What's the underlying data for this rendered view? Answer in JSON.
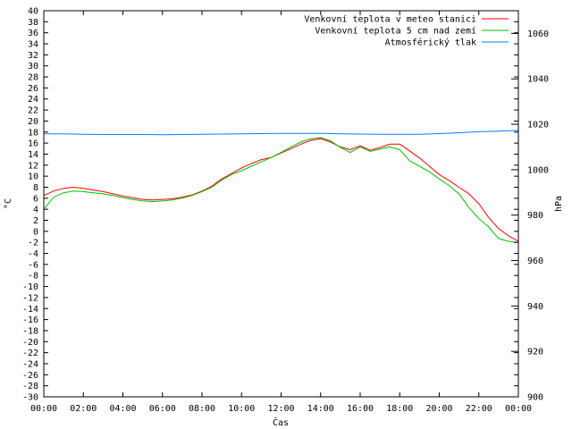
{
  "chart_data": {
    "type": "line",
    "x_label": "Čas",
    "y_left_label": "°C",
    "y_right_label": "hPa",
    "y_left_range": [
      -30,
      40
    ],
    "y_left_tick_step": 2,
    "y_right_range": [
      900,
      1070
    ],
    "y_right_ticks": [
      900,
      920,
      940,
      960,
      980,
      1000,
      1020,
      1040,
      1060
    ],
    "x_range_hours": [
      0,
      24
    ],
    "x_ticks": [
      "00:00",
      "02:00",
      "04:00",
      "06:00",
      "08:00",
      "10:00",
      "12:00",
      "14:00",
      "16:00",
      "18:00",
      "20:00",
      "22:00",
      "00:00"
    ],
    "legend_position": "top-right",
    "grid": false,
    "series": [
      {
        "name": "Venkovní teplota v meteo stanici",
        "color": "#ff0000",
        "axis": "left",
        "x": [
          0,
          0.5,
          1,
          1.5,
          2,
          2.5,
          3,
          3.5,
          4,
          4.5,
          5,
          5.5,
          6,
          6.5,
          7,
          7.5,
          8,
          8.5,
          9,
          9.5,
          10,
          10.5,
          11,
          11.5,
          12,
          12.5,
          13,
          13.5,
          14,
          14.5,
          15,
          15.5,
          16,
          16.5,
          17,
          17.5,
          18,
          18.5,
          19,
          19.5,
          20,
          20.5,
          21,
          21.5,
          22,
          22.5,
          23,
          23.5,
          24
        ],
        "y": [
          6.5,
          7.3,
          7.8,
          8.0,
          7.8,
          7.5,
          7.2,
          6.8,
          6.4,
          6.1,
          5.8,
          5.7,
          5.8,
          5.9,
          6.2,
          6.6,
          7.3,
          8.2,
          9.5,
          10.5,
          11.5,
          12.3,
          13.0,
          13.4,
          14.2,
          15.0,
          15.8,
          16.5,
          16.8,
          16.2,
          15.3,
          14.8,
          15.5,
          14.7,
          15.2,
          15.8,
          15.8,
          14.6,
          13.3,
          11.8,
          10.3,
          9.2,
          8.0,
          6.8,
          5.0,
          2.5,
          0.5,
          -0.8,
          -1.8
        ]
      },
      {
        "name": "Venkovní teplota 5 cm nad zemí",
        "color": "#00c000",
        "axis": "left",
        "x": [
          0,
          0.5,
          1,
          1.5,
          2,
          2.5,
          3,
          3.5,
          4,
          4.5,
          5,
          5.5,
          6,
          6.5,
          7,
          7.5,
          8,
          8.5,
          9,
          9.5,
          10,
          10.5,
          11,
          11.5,
          12,
          12.5,
          13,
          13.5,
          14,
          14.5,
          15,
          15.5,
          16,
          16.5,
          17,
          17.5,
          18,
          18.5,
          19,
          19.5,
          20,
          20.5,
          21,
          21.5,
          22,
          22.5,
          23,
          23.5,
          24
        ],
        "y": [
          4.0,
          6.2,
          7.0,
          7.3,
          7.2,
          7.0,
          6.8,
          6.5,
          6.1,
          5.8,
          5.5,
          5.4,
          5.5,
          5.7,
          6.0,
          6.5,
          7.2,
          8.0,
          9.3,
          10.3,
          11.0,
          11.8,
          12.6,
          13.4,
          14.3,
          15.3,
          16.2,
          16.8,
          17.0,
          16.4,
          15.2,
          14.3,
          15.3,
          14.5,
          14.9,
          15.3,
          14.8,
          12.8,
          11.8,
          10.8,
          9.5,
          8.3,
          6.8,
          4.3,
          2.3,
          0.8,
          -1.3,
          -1.8,
          -2.0
        ]
      },
      {
        "name": "Atmosférický tlak",
        "color": "#0080ff",
        "axis": "right",
        "x": [
          0,
          1,
          2,
          3,
          4,
          5,
          6,
          7,
          8,
          9,
          10,
          11,
          12,
          13,
          14,
          15,
          16,
          17,
          18,
          19,
          20,
          21,
          22,
          23,
          24
        ],
        "y": [
          1015.8,
          1015.8,
          1015.6,
          1015.5,
          1015.5,
          1015.5,
          1015.4,
          1015.5,
          1015.6,
          1015.7,
          1015.8,
          1015.9,
          1016.0,
          1016.0,
          1016.0,
          1015.8,
          1015.7,
          1015.6,
          1015.6,
          1015.6,
          1015.9,
          1016.3,
          1016.7,
          1017.0,
          1017.3
        ]
      }
    ]
  }
}
